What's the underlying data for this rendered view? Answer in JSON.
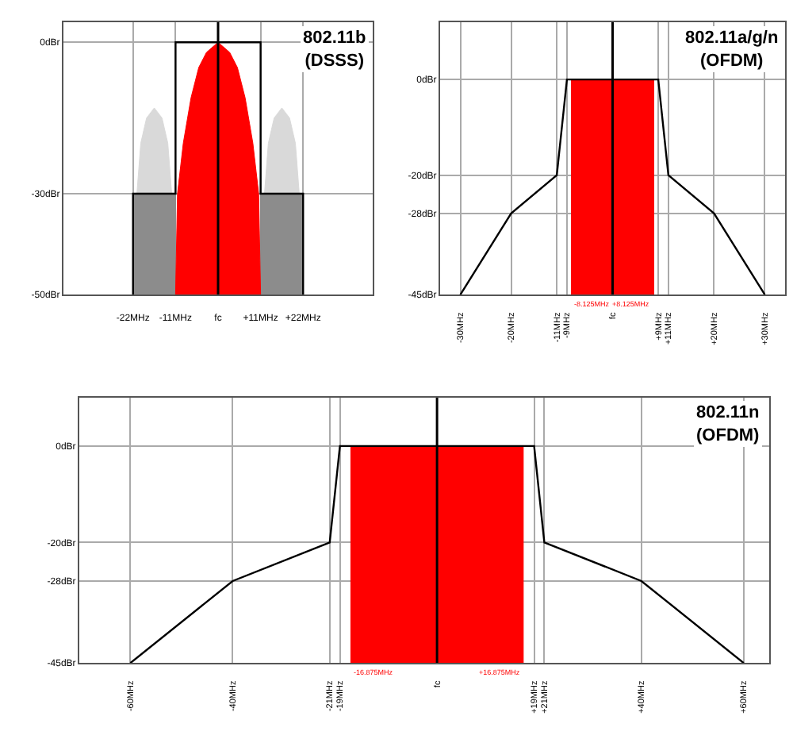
{
  "chart_data": [
    {
      "type": "line",
      "title": "802.11b\n(DSSS)",
      "xlim": [
        -40,
        40
      ],
      "ylim": [
        -50,
        4
      ],
      "xticks": [
        {
          "value": -22,
          "label": "-22MHz"
        },
        {
          "value": -11,
          "label": "-11MHz"
        },
        {
          "value": 0,
          "label": "fc"
        },
        {
          "value": 11,
          "label": "+11MHz"
        },
        {
          "value": 22,
          "label": "+22MHz"
        }
      ],
      "yticks": [
        {
          "value": -50,
          "label": "-50dBr"
        },
        {
          "value": -30,
          "label": "-30dBr"
        },
        {
          "value": 0,
          "label": "0dBr"
        }
      ],
      "grid": true,
      "series": [
        {
          "type": "area",
          "color": "#d9d9d9",
          "x": [
            -22,
            -21,
            -20,
            -18.5,
            -16.5,
            -14.5,
            -13,
            -12,
            -11
          ],
          "values": [
            -50,
            -30,
            -20,
            -15,
            -13,
            -15,
            -20,
            -30,
            -50
          ]
        },
        {
          "type": "area",
          "color": "#d9d9d9",
          "x": [
            11,
            12,
            13,
            14.5,
            16.5,
            18.5,
            20,
            21,
            22
          ],
          "values": [
            -50,
            -30,
            -20,
            -15,
            -13,
            -15,
            -20,
            -30,
            -50
          ]
        },
        {
          "type": "area",
          "color": "#8c8c8c",
          "x": [
            -22,
            -22,
            -11,
            -11
          ],
          "values": [
            -50,
            -30,
            -30,
            -50
          ]
        },
        {
          "type": "area",
          "color": "#8c8c8c",
          "x": [
            11,
            11,
            22,
            22
          ],
          "values": [
            -50,
            -30,
            -30,
            -50
          ]
        },
        {
          "type": "area",
          "color": "#ff0000",
          "x": [
            -11,
            -10.5,
            -9,
            -7,
            -5,
            -3,
            0,
            3,
            5,
            7,
            9,
            10.5,
            11
          ],
          "values": [
            -50,
            -30,
            -20,
            -11,
            -5,
            -2,
            0,
            -2,
            -5,
            -11,
            -20,
            -30,
            -50
          ]
        },
        {
          "color": "#000000",
          "x": [
            -22,
            -22,
            -11,
            -11,
            11,
            11,
            22,
            22
          ],
          "values": [
            -50,
            -30,
            -30,
            0,
            0,
            -30,
            -30,
            -50
          ]
        }
      ],
      "ref_lines": [
        {
          "axis": "x",
          "value": 0,
          "color": "#000000"
        }
      ]
    },
    {
      "type": "line",
      "title": "802.11a/g/n\n(OFDM)",
      "xlim": [
        -34,
        34
      ],
      "ylim": [
        -45,
        12
      ],
      "xticks": [
        {
          "value": -30,
          "label": "-30MHz"
        },
        {
          "value": -20,
          "label": "-20MHz"
        },
        {
          "value": -11,
          "label": "-11MHz"
        },
        {
          "value": -9,
          "label": "-9MHz"
        },
        {
          "value": 0,
          "label": "fc"
        },
        {
          "value": 9,
          "label": "+9MHz"
        },
        {
          "value": 11,
          "label": "+11MHz"
        },
        {
          "value": 20,
          "label": "+20MHz"
        },
        {
          "value": 30,
          "label": "+30MHz"
        }
      ],
      "yticks": [
        {
          "value": -45,
          "label": "-45dBr"
        },
        {
          "value": -28,
          "label": "-28dBr"
        },
        {
          "value": -20,
          "label": "-20dBr"
        },
        {
          "value": 0,
          "label": "0dBr"
        }
      ],
      "grid": true,
      "series": [
        {
          "type": "area",
          "color": "#ff0000",
          "x": [
            -8.125,
            -8.125,
            8.125,
            8.125
          ],
          "values": [
            -45,
            0,
            0,
            -45
          ]
        },
        {
          "color": "#000000",
          "x": [
            -30,
            -20,
            -11,
            -9,
            9,
            11,
            20,
            30
          ],
          "values": [
            -45,
            -28,
            -20,
            0,
            0,
            -20,
            -28,
            -45
          ]
        }
      ],
      "ref_lines": [
        {
          "axis": "x",
          "value": 0,
          "color": "#000000"
        }
      ],
      "annotations": [
        {
          "text": "-8.125MHz",
          "x": -8.125,
          "y": -45
        },
        {
          "text": "+8.125MHz",
          "x": 8.125,
          "y": -45
        }
      ]
    },
    {
      "type": "line",
      "title": "802.11n\n(OFDM)",
      "xlim": [
        -70,
        65
      ],
      "ylim": [
        -45,
        10
      ],
      "xticks": [
        {
          "value": -60,
          "label": "-60MHz"
        },
        {
          "value": -40,
          "label": "-40MHz"
        },
        {
          "value": -21,
          "label": "-21MHz"
        },
        {
          "value": -19,
          "label": "-19MHz"
        },
        {
          "value": 0,
          "label": "fc"
        },
        {
          "value": 19,
          "label": "+19MHz"
        },
        {
          "value": 21,
          "label": "+21MHz"
        },
        {
          "value": 40,
          "label": "+40MHz"
        },
        {
          "value": 60,
          "label": "+60MHz"
        }
      ],
      "yticks": [
        {
          "value": -45,
          "label": "-45dBr"
        },
        {
          "value": -28,
          "label": "-28dBr"
        },
        {
          "value": -20,
          "label": "-20dBr"
        },
        {
          "value": 0,
          "label": "0dBr"
        }
      ],
      "grid": true,
      "series": [
        {
          "type": "area",
          "color": "#ff0000",
          "x": [
            -16.875,
            -16.875,
            16.875,
            16.875
          ],
          "values": [
            -45,
            0,
            0,
            -45
          ]
        },
        {
          "color": "#000000",
          "x": [
            -60,
            -40,
            -21,
            -19,
            19,
            21,
            40,
            60
          ],
          "values": [
            -45,
            -28,
            -20,
            0,
            0,
            -20,
            -28,
            -45
          ]
        }
      ],
      "ref_lines": [
        {
          "axis": "x",
          "value": 0,
          "color": "#000000"
        }
      ],
      "annotations": [
        {
          "text": "-16.875MHz",
          "x": -16.875,
          "y": -45
        },
        {
          "text": "+16.875MHz",
          "x": 16.875,
          "y": -45
        }
      ]
    }
  ]
}
